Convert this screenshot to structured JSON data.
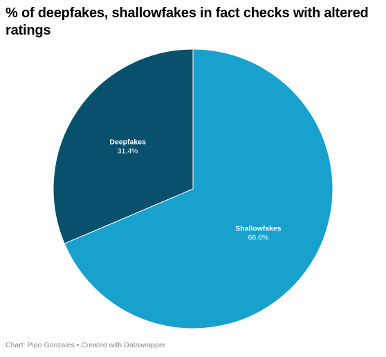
{
  "title": "% of deepfakes, shallowfakes in fact checks with altered ratings",
  "footer": "Chart: Pipo Gonzales • Created with Datawrapper",
  "chart_data": {
    "type": "pie",
    "title": "% of deepfakes, shallowfakes in fact checks with altered ratings",
    "slices": [
      {
        "label": "Shallowfakes",
        "value": 68.6,
        "value_label": "68.6%",
        "color": "#18a1cd"
      },
      {
        "label": "Deepfakes",
        "value": 31.4,
        "value_label": "31.4%",
        "color": "#09506d"
      }
    ],
    "start": "12 o'clock",
    "direction": "clockwise",
    "labels": "inside slices, white, name bold above percentage"
  }
}
